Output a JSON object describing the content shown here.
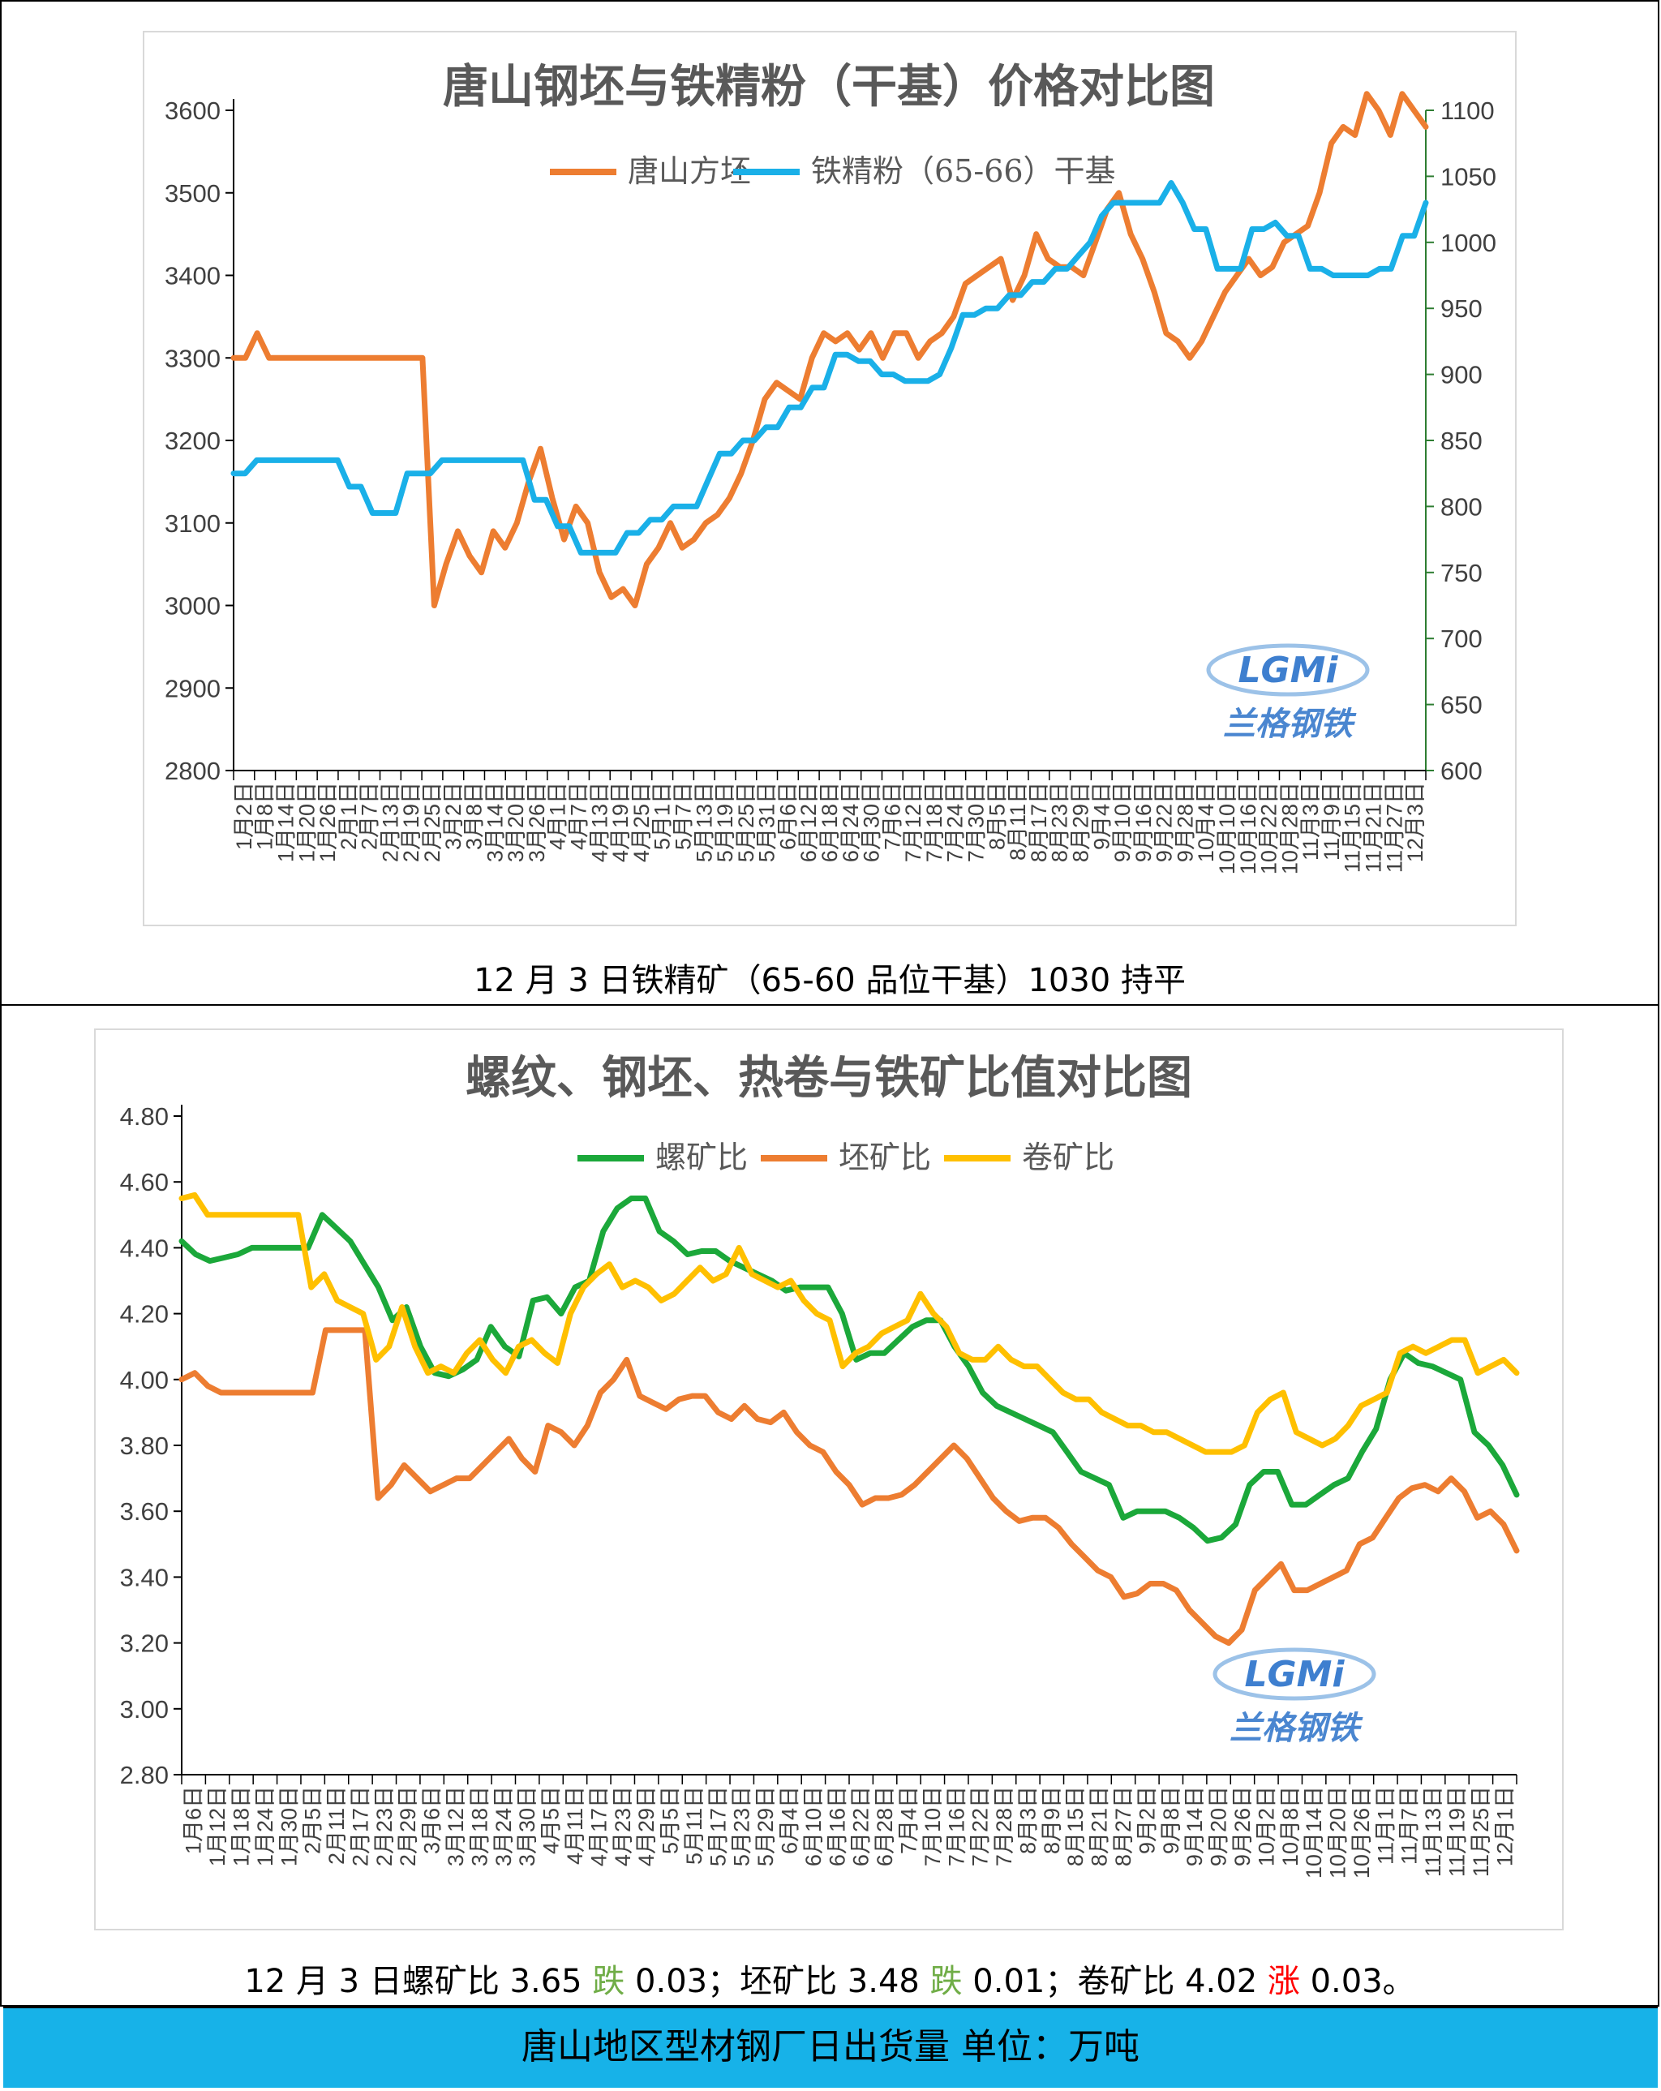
{
  "chart_data": [
    {
      "type": "line",
      "title": "唐山钢坯与铁精粉（干基）价格对比图",
      "xlabel": "",
      "ylabel": "",
      "ylim": [
        2800,
        3600
      ],
      "y_ticks": [
        "3600",
        "3500",
        "3400",
        "3300",
        "3200",
        "3100",
        "3000",
        "2900",
        "2800"
      ],
      "y2lim": [
        600,
        1100
      ],
      "y2_ticks": [
        "1100",
        "1050",
        "1000",
        "950",
        "900",
        "850",
        "800",
        "750",
        "700",
        "650",
        "600"
      ],
      "x_ticks": [
        "1月2日",
        "1月8日",
        "1月14日",
        "1月20日",
        "1月26日",
        "2月1日",
        "2月7日",
        "2月13日",
        "2月19日",
        "2月25日",
        "3月2日",
        "3月8日",
        "3月14日",
        "3月20日",
        "3月26日",
        "4月1日",
        "4月7日",
        "4月13日",
        "4月19日",
        "4月25日",
        "5月1日",
        "5月7日",
        "5月13日",
        "5月19日",
        "5月25日",
        "5月31日",
        "6月6日",
        "6月12日",
        "6月18日",
        "6月24日",
        "6月30日",
        "7月6日",
        "7月12日",
        "7月18日",
        "7月24日",
        "7月30日",
        "8月5日",
        "8月11日",
        "8月17日",
        "8月23日",
        "8月29日",
        "9月4日",
        "9月10日",
        "9月16日",
        "9月22日",
        "9月28日",
        "10月4日",
        "10月10日",
        "10月16日",
        "10月22日",
        "10月28日",
        "11月3日",
        "11月9日",
        "11月15日",
        "11月21日",
        "11月27日",
        "12月3日"
      ],
      "legend": "top",
      "series": [
        {
          "name": "唐山方坯",
          "axis": "left",
          "color": "#ed7d31",
          "values": [
            3300,
            3300,
            3330,
            3300,
            3300,
            3300,
            3300,
            3300,
            3300,
            3300,
            3300,
            3300,
            3300,
            3300,
            3300,
            3300,
            3300,
            3000,
            3050,
            3090,
            3060,
            3040,
            3090,
            3070,
            3100,
            3150,
            3190,
            3130,
            3080,
            3120,
            3100,
            3040,
            3010,
            3020,
            3000,
            3050,
            3070,
            3100,
            3070,
            3080,
            3100,
            3110,
            3130,
            3160,
            3200,
            3250,
            3270,
            3260,
            3250,
            3300,
            3330,
            3320,
            3330,
            3310,
            3330,
            3300,
            3330,
            3330,
            3300,
            3320,
            3330,
            3350,
            3390,
            3400,
            3410,
            3420,
            3370,
            3400,
            3450,
            3420,
            3410,
            3410,
            3400,
            3440,
            3480,
            3500,
            3450,
            3420,
            3380,
            3330,
            3320,
            3300,
            3320,
            3350,
            3380,
            3400,
            3420,
            3400,
            3410,
            3440,
            3450,
            3460,
            3500,
            3560,
            3580,
            3570,
            3620,
            3600,
            3570,
            3620,
            3600,
            3580
          ]
        },
        {
          "name": "铁精粉（65-66）干基",
          "axis": "right",
          "color": "#1ab0e8",
          "values": [
            825,
            825,
            835,
            835,
            835,
            835,
            835,
            835,
            835,
            835,
            815,
            815,
            795,
            795,
            795,
            825,
            825,
            825,
            835,
            835,
            835,
            835,
            835,
            835,
            835,
            835,
            805,
            805,
            785,
            785,
            765,
            765,
            765,
            765,
            780,
            780,
            790,
            790,
            800,
            800,
            800,
            820,
            840,
            840,
            850,
            850,
            860,
            860,
            875,
            875,
            890,
            890,
            915,
            915,
            910,
            910,
            900,
            900,
            895,
            895,
            895,
            900,
            920,
            945,
            945,
            950,
            950,
            960,
            960,
            970,
            970,
            980,
            980,
            990,
            1000,
            1020,
            1030,
            1030,
            1030,
            1030,
            1030,
            1045,
            1030,
            1010,
            1010,
            980,
            980,
            980,
            1010,
            1010,
            1015,
            1005,
            1005,
            980,
            980,
            975,
            975,
            975,
            975,
            980,
            980,
            1005,
            1005,
            1030
          ]
        }
      ]
    },
    {
      "type": "line",
      "title": "螺纹、钢坯、热卷与铁矿比值对比图",
      "xlabel": "",
      "ylabel": "",
      "ylim": [
        2.8,
        4.8
      ],
      "y_ticks": [
        "4.80",
        "4.60",
        "4.40",
        "4.20",
        "4.00",
        "3.80",
        "3.60",
        "3.40",
        "3.20",
        "3.00",
        "2.80"
      ],
      "x_ticks": [
        "1月6日",
        "1月12日",
        "1月18日",
        "1月24日",
        "1月30日",
        "2月5日",
        "2月11日",
        "2月17日",
        "2月23日",
        "2月29日",
        "3月6日",
        "3月12日",
        "3月18日",
        "3月24日",
        "3月30日",
        "4月5日",
        "4月11日",
        "4月17日",
        "4月23日",
        "4月29日",
        "5月5日",
        "5月11日",
        "5月17日",
        "5月23日",
        "5月29日",
        "6月4日",
        "6月10日",
        "6月16日",
        "6月22日",
        "6月28日",
        "7月4日",
        "7月10日",
        "7月16日",
        "7月22日",
        "7月28日",
        "8月3日",
        "8月9日",
        "8月15日",
        "8月21日",
        "8月27日",
        "9月2日",
        "9月8日",
        "9月14日",
        "9月20日",
        "9月26日",
        "10月2日",
        "10月8日",
        "10月14日",
        "10月20日",
        "10月26日",
        "11月1日",
        "11月7日",
        "11月13日",
        "11月19日",
        "11月25日",
        "12月1日"
      ],
      "legend": "top",
      "series": [
        {
          "name": "螺矿比",
          "color": "#1ba83a",
          "values": [
            4.42,
            4.38,
            4.36,
            4.37,
            4.38,
            4.4,
            4.4,
            4.4,
            4.4,
            4.4,
            4.5,
            4.46,
            4.42,
            4.35,
            4.28,
            4.18,
            4.22,
            4.1,
            4.02,
            4.01,
            4.03,
            4.06,
            4.16,
            4.1,
            4.07,
            4.24,
            4.25,
            4.2,
            4.28,
            4.3,
            4.45,
            4.52,
            4.55,
            4.55,
            4.45,
            4.42,
            4.38,
            4.39,
            4.39,
            4.36,
            4.34,
            4.32,
            4.3,
            4.27,
            4.28,
            4.28,
            4.28,
            4.2,
            4.06,
            4.08,
            4.08,
            4.12,
            4.16,
            4.18,
            4.18,
            4.1,
            4.04,
            3.96,
            3.92,
            3.9,
            3.88,
            3.86,
            3.84,
            3.78,
            3.72,
            3.7,
            3.68,
            3.58,
            3.6,
            3.6,
            3.6,
            3.58,
            3.55,
            3.51,
            3.52,
            3.56,
            3.68,
            3.72,
            3.72,
            3.62,
            3.62,
            3.65,
            3.68,
            3.7,
            3.78,
            3.85,
            4.0,
            4.08,
            4.05,
            4.04,
            4.02,
            4.0,
            3.84,
            3.8,
            3.74,
            3.65
          ]
        },
        {
          "name": "坯矿比",
          "color": "#ed7d31",
          "values": [
            4.0,
            4.02,
            3.98,
            3.96,
            3.96,
            3.96,
            3.96,
            3.96,
            3.96,
            3.96,
            3.96,
            4.15,
            4.15,
            4.15,
            4.15,
            3.64,
            3.68,
            3.74,
            3.7,
            3.66,
            3.68,
            3.7,
            3.7,
            3.74,
            3.78,
            3.82,
            3.76,
            3.72,
            3.86,
            3.84,
            3.8,
            3.86,
            3.96,
            4.0,
            4.06,
            3.95,
            3.93,
            3.91,
            3.94,
            3.95,
            3.95,
            3.9,
            3.88,
            3.92,
            3.88,
            3.87,
            3.9,
            3.84,
            3.8,
            3.78,
            3.72,
            3.68,
            3.62,
            3.64,
            3.64,
            3.65,
            3.68,
            3.72,
            3.76,
            3.8,
            3.76,
            3.7,
            3.64,
            3.6,
            3.57,
            3.58,
            3.58,
            3.55,
            3.5,
            3.46,
            3.42,
            3.4,
            3.34,
            3.35,
            3.38,
            3.38,
            3.36,
            3.3,
            3.26,
            3.22,
            3.2,
            3.24,
            3.36,
            3.4,
            3.44,
            3.36,
            3.36,
            3.38,
            3.4,
            3.42,
            3.5,
            3.52,
            3.58,
            3.64,
            3.67,
            3.68,
            3.66,
            3.7,
            3.66,
            3.58,
            3.6,
            3.56,
            3.48
          ]
        },
        {
          "name": "卷矿比",
          "color": "#ffc000",
          "values": [
            4.55,
            4.56,
            4.5,
            4.5,
            4.5,
            4.5,
            4.5,
            4.5,
            4.5,
            4.5,
            4.28,
            4.32,
            4.24,
            4.22,
            4.2,
            4.06,
            4.1,
            4.22,
            4.1,
            4.02,
            4.04,
            4.02,
            4.08,
            4.12,
            4.06,
            4.02,
            4.1,
            4.12,
            4.08,
            4.05,
            4.2,
            4.28,
            4.32,
            4.35,
            4.28,
            4.3,
            4.28,
            4.24,
            4.26,
            4.3,
            4.34,
            4.3,
            4.32,
            4.4,
            4.32,
            4.3,
            4.28,
            4.3,
            4.24,
            4.2,
            4.18,
            4.04,
            4.08,
            4.1,
            4.14,
            4.16,
            4.18,
            4.26,
            4.2,
            4.16,
            4.08,
            4.06,
            4.06,
            4.1,
            4.06,
            4.04,
            4.04,
            4.0,
            3.96,
            3.94,
            3.94,
            3.9,
            3.88,
            3.86,
            3.86,
            3.84,
            3.84,
            3.82,
            3.8,
            3.78,
            3.78,
            3.78,
            3.8,
            3.9,
            3.94,
            3.96,
            3.84,
            3.82,
            3.8,
            3.82,
            3.86,
            3.92,
            3.94,
            3.96,
            4.08,
            4.1,
            4.08,
            4.1,
            4.12,
            4.12,
            4.02,
            4.04,
            4.06,
            4.02
          ]
        }
      ]
    }
  ],
  "logo": {
    "mark": "LGMi",
    "name": "兰格钢铁"
  },
  "caption1": "12 月 3 日铁精矿（65-60 品位干基）1030  持平",
  "caption2": {
    "p1": "12 月 3 日螺矿比 3.65 ",
    "w1": "跌",
    "p2": " 0.03；坯矿比 3.48  ",
    "w2": "跌",
    "p3": " 0.01；卷矿比 4.02  ",
    "w3": "涨",
    "p4": " 0.03。"
  },
  "footer": "唐山地区型材钢厂日出货量  单位：万吨"
}
